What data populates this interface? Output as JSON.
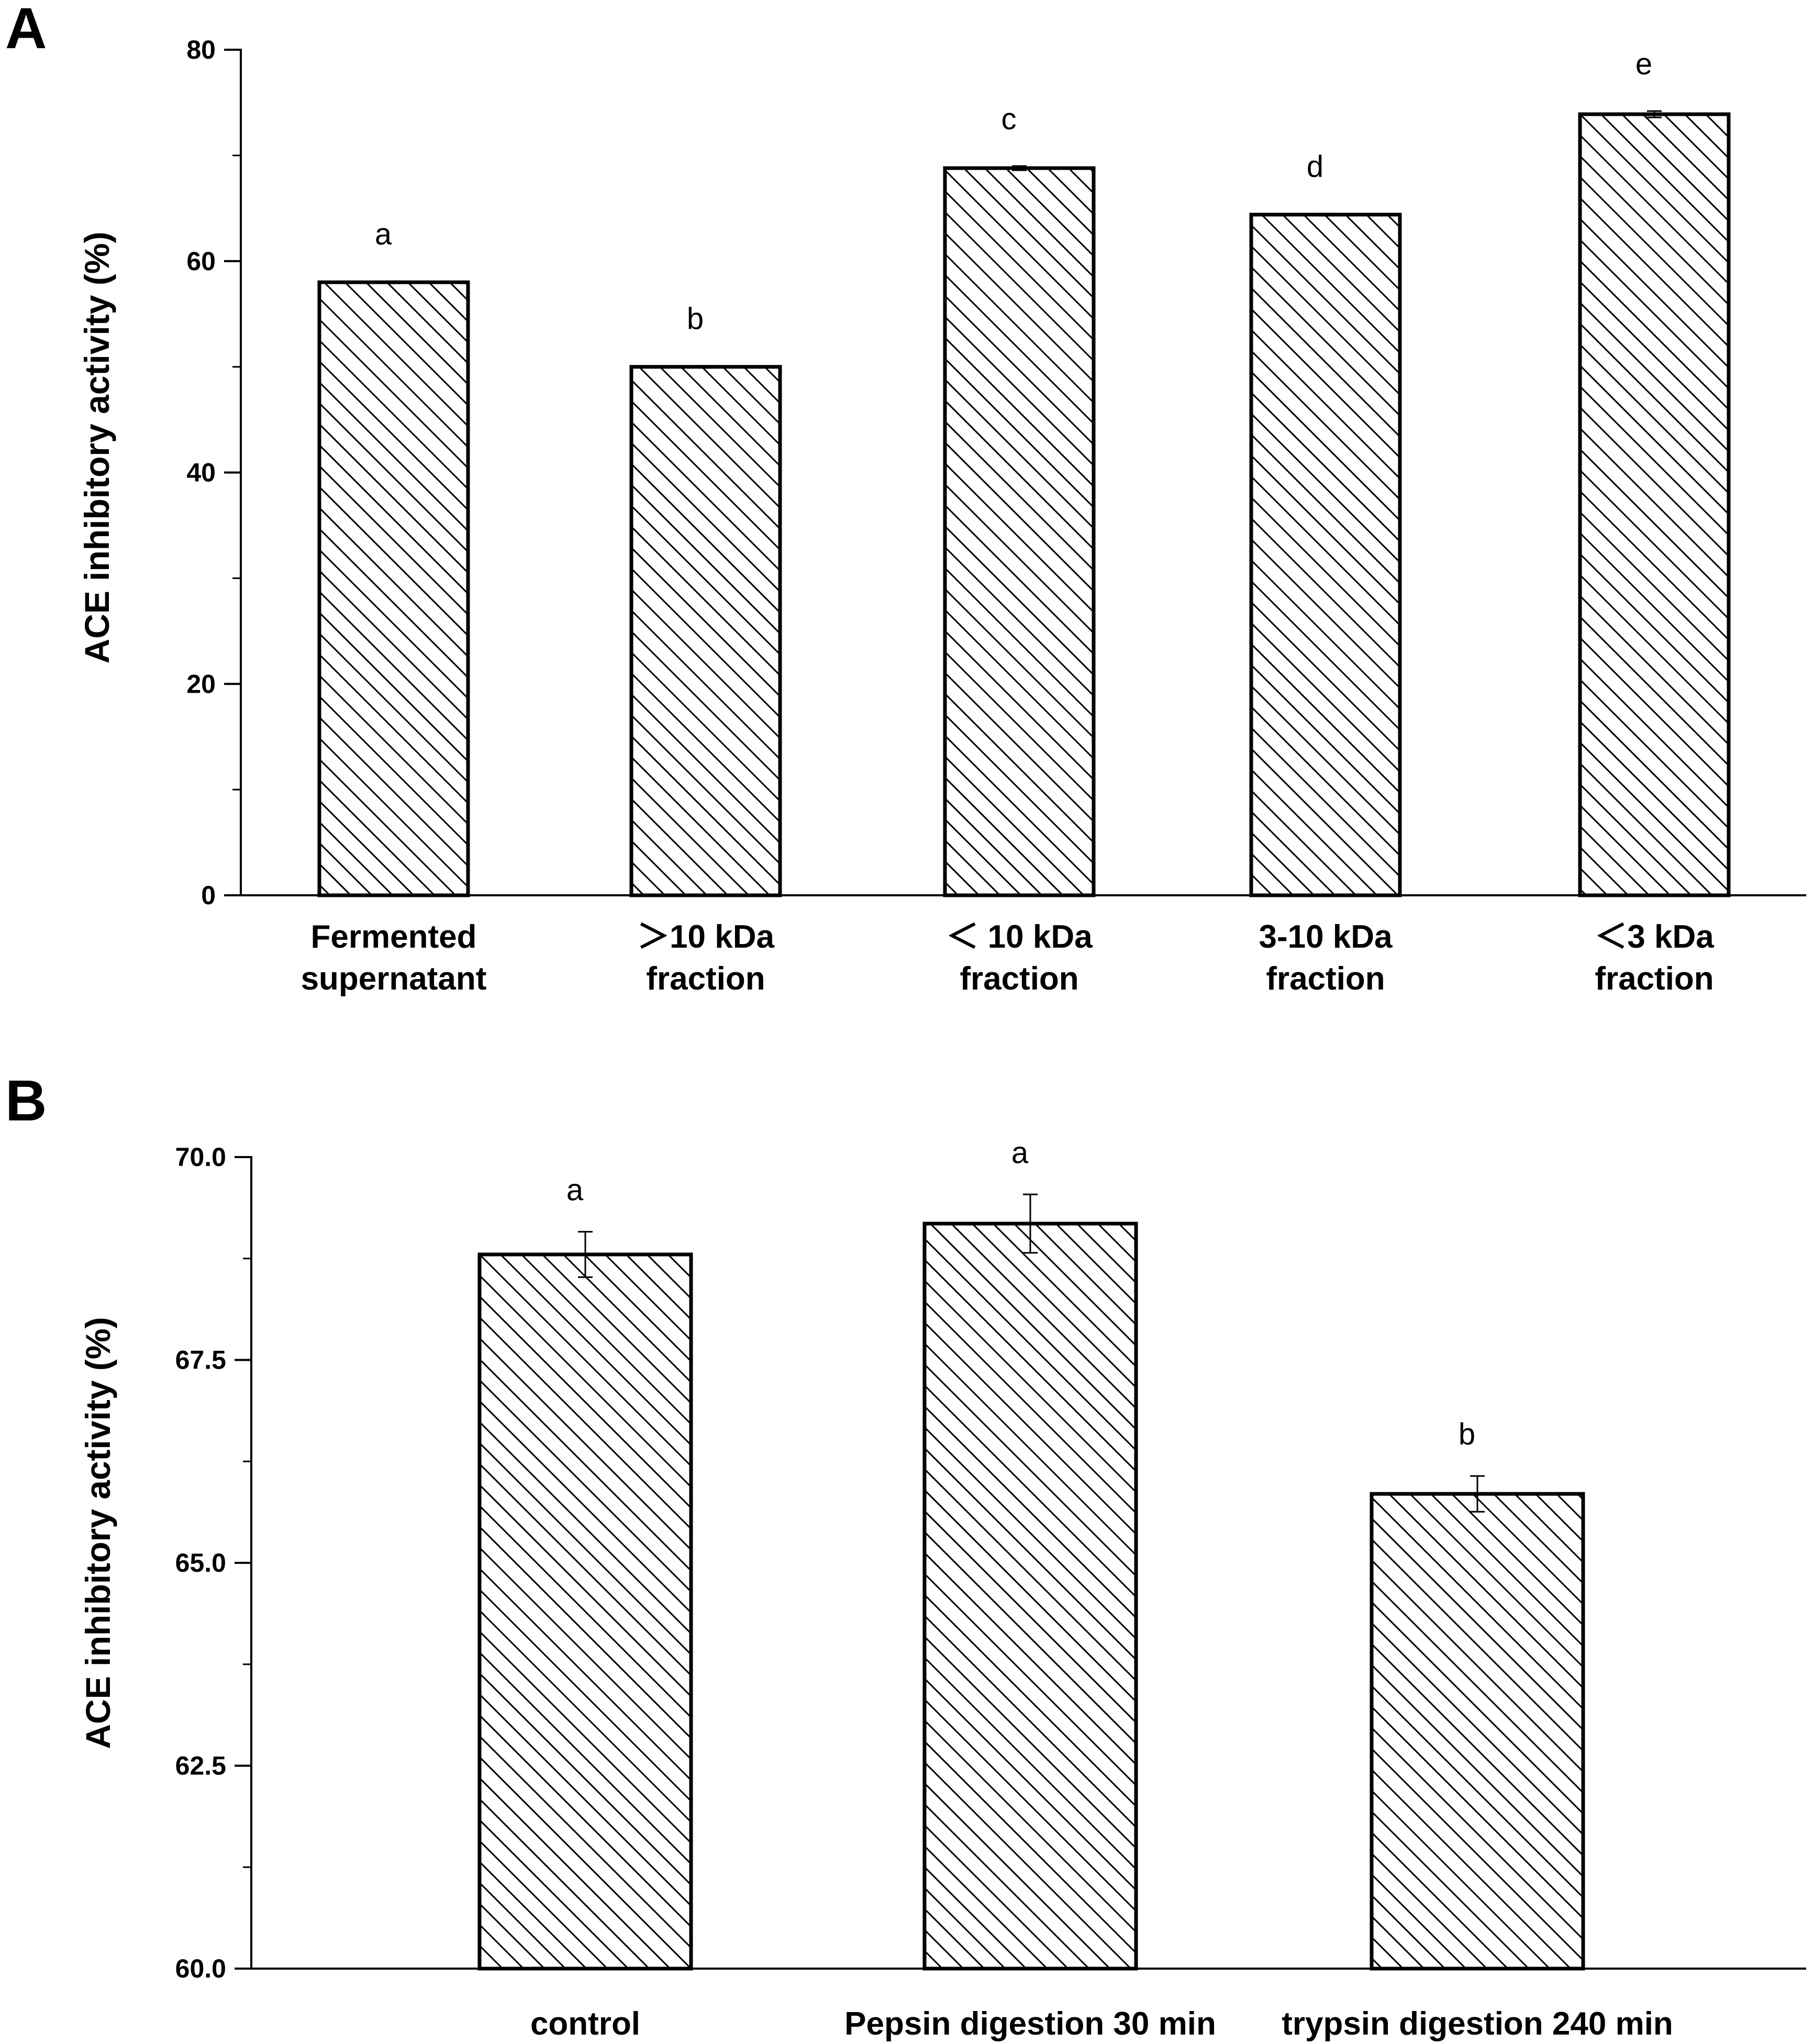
{
  "chart_data": [
    {
      "panel": "A",
      "type": "bar",
      "ylabel": "ACE inhibitory activity (%)",
      "xlabel": "",
      "ylim": [
        0,
        80
      ],
      "yticks": [
        "0",
        "20",
        "40",
        "60",
        "80"
      ],
      "tick_values": [
        0,
        20,
        40,
        60,
        80
      ],
      "minor_step": 10,
      "categories": [
        [
          "Fermented",
          "supernatant"
        ],
        [
          "＞10 kDa",
          "fraction"
        ],
        [
          "＜ 10 kDa",
          "fraction"
        ],
        [
          "3-10 kDa",
          "fraction"
        ],
        [
          "＜3 kDa",
          "fraction"
        ]
      ],
      "values": [
        58.0,
        50.0,
        68.8,
        64.4,
        73.9
      ],
      "errors": [
        0.1,
        0.1,
        0.2,
        0.1,
        0.3
      ],
      "significance": [
        "a",
        "b",
        "c",
        "d",
        "e"
      ],
      "legend": "none",
      "grid": false
    },
    {
      "panel": "B",
      "type": "bar",
      "ylabel": "ACE inhibitory activity (%)",
      "xlabel": "",
      "ylim": [
        60.0,
        70.0
      ],
      "yticks": [
        "60.0",
        "62.5",
        "65.0",
        "67.5",
        "70.0"
      ],
      "tick_values": [
        60.0,
        62.5,
        65.0,
        67.5,
        70.0
      ],
      "minor_step": 1.25,
      "categories": [
        [
          "control"
        ],
        [
          "Pepsin digestion 30 min"
        ],
        [
          "trypsin digestion 240 min"
        ]
      ],
      "values": [
        68.8,
        69.18,
        65.85
      ],
      "errors": [
        0.28,
        0.36,
        0.22
      ],
      "significance": [
        "a",
        "a",
        "b"
      ],
      "legend": "none",
      "grid": false
    }
  ]
}
